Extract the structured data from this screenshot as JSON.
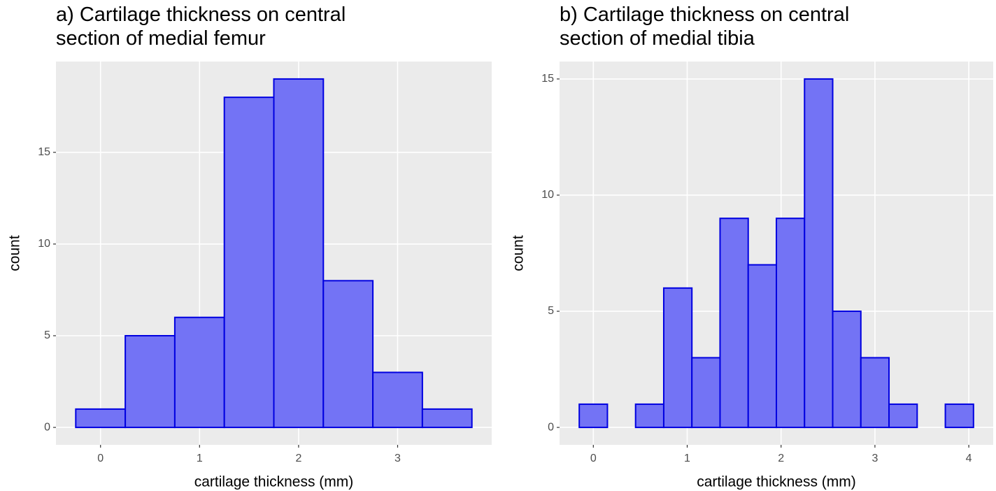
{
  "chart_data": [
    {
      "type": "histogram",
      "title": "a) Cartilage thickness on central\nsection of medial femur",
      "xlabel": "cartilage thickness (mm)",
      "ylabel": "count",
      "bins": [
        -0.25,
        0.25,
        0.75,
        1.25,
        1.75,
        2.25,
        2.75,
        3.25,
        3.75
      ],
      "values": [
        1,
        5,
        6,
        18,
        19,
        8,
        3,
        1
      ],
      "color": "#7373f5",
      "edgecolor": "#0000e0",
      "xlim": [
        -0.45,
        3.95
      ],
      "xticks": [
        0,
        1,
        2,
        3
      ],
      "ylim": [
        -0.95,
        19.95
      ],
      "yticks": [
        0,
        5,
        10,
        15
      ],
      "grid": true
    },
    {
      "type": "histogram",
      "title": "b) Cartilage thickness on central\nsection of medial tibia",
      "xlabel": "cartilage thickness (mm)",
      "ylabel": "count",
      "bins": [
        -0.15,
        0.15,
        0.45,
        0.75,
        1.05,
        1.35,
        1.65,
        1.95,
        2.25,
        2.55,
        2.85,
        3.15,
        3.45,
        3.75,
        4.05
      ],
      "values": [
        1,
        0,
        1,
        6,
        3,
        9,
        7,
        9,
        15,
        5,
        3,
        1,
        0,
        1
      ],
      "color": "#7373f5",
      "edgecolor": "#0000e0",
      "xlim": [
        -0.36,
        4.26
      ],
      "xticks": [
        0,
        1,
        2,
        3,
        4
      ],
      "ylim": [
        -0.75,
        15.75
      ],
      "yticks": [
        0,
        5,
        10,
        15
      ],
      "grid": true
    }
  ]
}
